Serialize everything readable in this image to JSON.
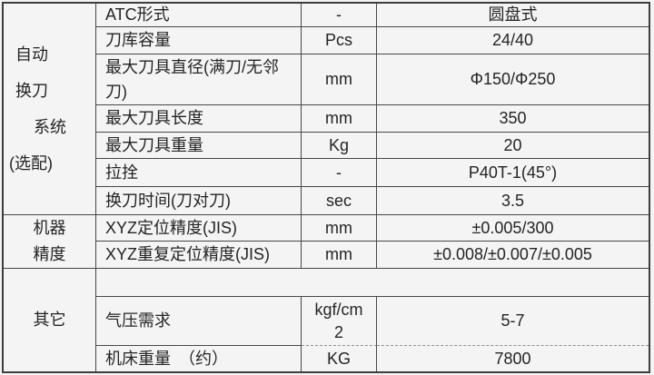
{
  "page": {
    "background": "#f4f4f4",
    "border_color": "#3d3d3d",
    "text_color": "#242424"
  },
  "table": {
    "type": "table",
    "sections": [
      {
        "lines": [
          "自动",
          "换刀",
          "系统",
          "(选配)"
        ]
      },
      {
        "lines": [
          "机器",
          "精度"
        ]
      },
      {
        "lines": [
          "其它"
        ]
      }
    ],
    "rows": [
      {
        "item": "ATC形式",
        "unit": "-",
        "value": "圆盘式"
      },
      {
        "item": "刀库容量",
        "unit": "Pcs",
        "value": "24/40"
      },
      {
        "item": "最大刀具直径(满刀/无邻",
        "item2": "刀)",
        "unit": "mm",
        "value": "Φ150/Φ250"
      },
      {
        "item": "最大刀具长度",
        "unit": "mm",
        "value": "350"
      },
      {
        "item": "最大刀具重量",
        "unit": "Kg",
        "value": "20"
      },
      {
        "item": "拉拴",
        "unit": "-",
        "value": "P40T-1(45°)"
      },
      {
        "item": "换刀时间(刀对刀)",
        "unit": "sec",
        "value": "3.5"
      },
      {
        "item": "XYZ定位精度(JIS)",
        "unit": "mm",
        "value": "±0.005/300"
      },
      {
        "item": "XYZ重复定位精度(JIS)",
        "unit": "mm",
        "value": "±0.008/±0.007/±0.005"
      },
      {
        "item": "",
        "unit": "",
        "value": ""
      },
      {
        "item": "气压需求",
        "unit": "kgf/cm",
        "unit2": "2",
        "value": "5-7"
      },
      {
        "item": "机床重量　（约）",
        "unit": "KG",
        "value": "7800"
      }
    ]
  }
}
